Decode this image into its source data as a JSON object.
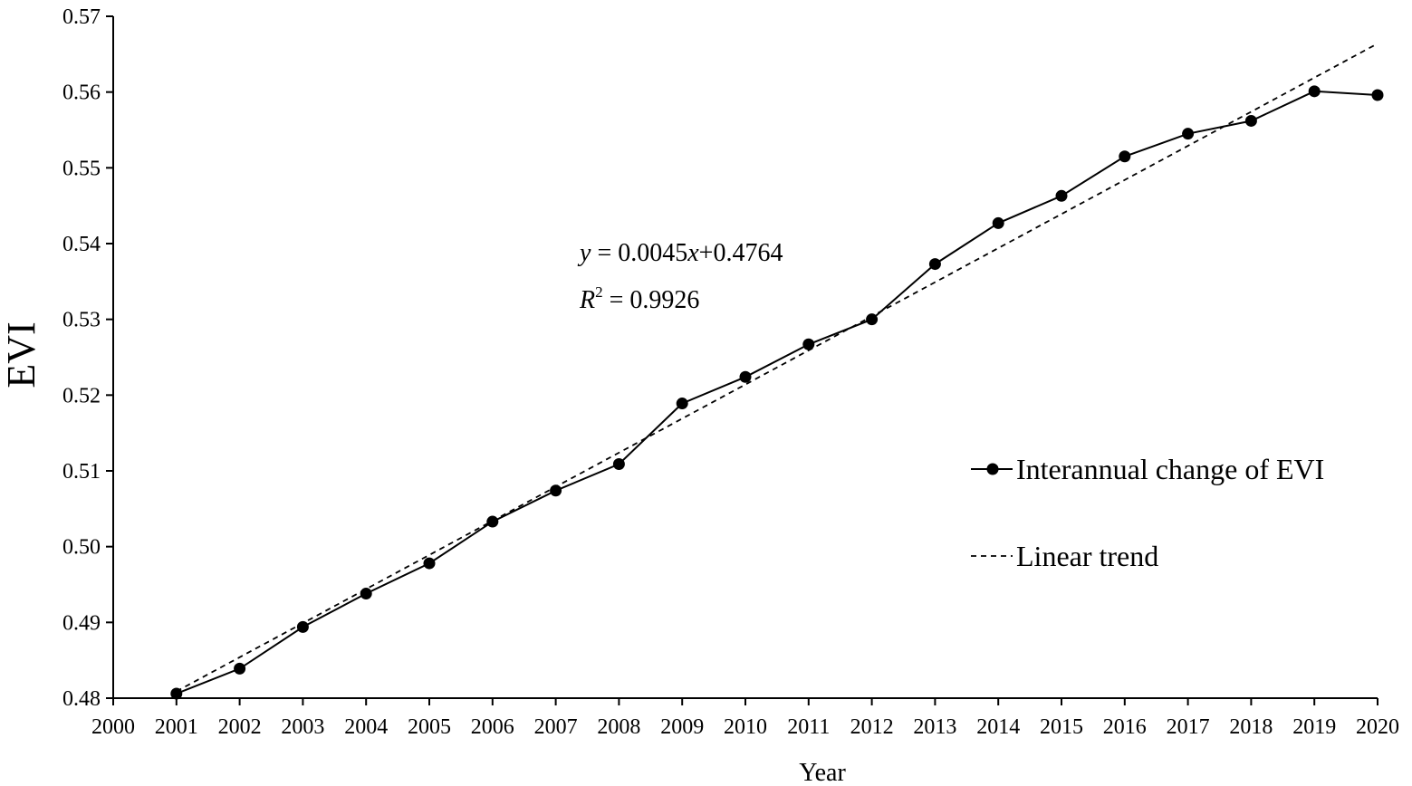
{
  "chart_data": {
    "type": "line",
    "xlabel": "Year",
    "ylabel": "EVI",
    "xlim": [
      2000,
      2020
    ],
    "ylim": [
      0.48,
      0.57
    ],
    "x_ticks": [
      2000,
      2001,
      2002,
      2003,
      2004,
      2005,
      2006,
      2007,
      2008,
      2009,
      2010,
      2011,
      2012,
      2013,
      2014,
      2015,
      2016,
      2017,
      2018,
      2019,
      2020
    ],
    "y_ticks": [
      "0.48",
      "0.49",
      "0.50",
      "0.51",
      "0.52",
      "0.53",
      "0.54",
      "0.55",
      "0.56",
      "0.57"
    ],
    "grid": false,
    "legend_position": "right",
    "series": [
      {
        "name": "Interannual change of EVI",
        "style": "solid-with-markers",
        "x": [
          2001,
          2002,
          2003,
          2004,
          2005,
          2006,
          2007,
          2008,
          2009,
          2010,
          2011,
          2012,
          2013,
          2014,
          2015,
          2016,
          2017,
          2018,
          2019,
          2020
        ],
        "values": [
          0.4806,
          0.4839,
          0.4894,
          0.4938,
          0.4978,
          0.5033,
          0.5074,
          0.5109,
          0.5189,
          0.5224,
          0.5267,
          0.53,
          0.5373,
          0.5427,
          0.5463,
          0.5515,
          0.5545,
          0.5562,
          0.5601,
          0.5596
        ]
      },
      {
        "name": "Linear trend",
        "style": "dashed",
        "x": [
          2001,
          2020
        ],
        "values": [
          0.4809,
          0.5664
        ]
      }
    ],
    "annotation": {
      "equation_y": "y",
      "equation_rest": " = 0.0045",
      "equation_x": "x",
      "equation_tail": "+0.4764",
      "r2_symbol": "R",
      "r2_sup": "2",
      "r2_rest": " = 0.9926"
    }
  }
}
